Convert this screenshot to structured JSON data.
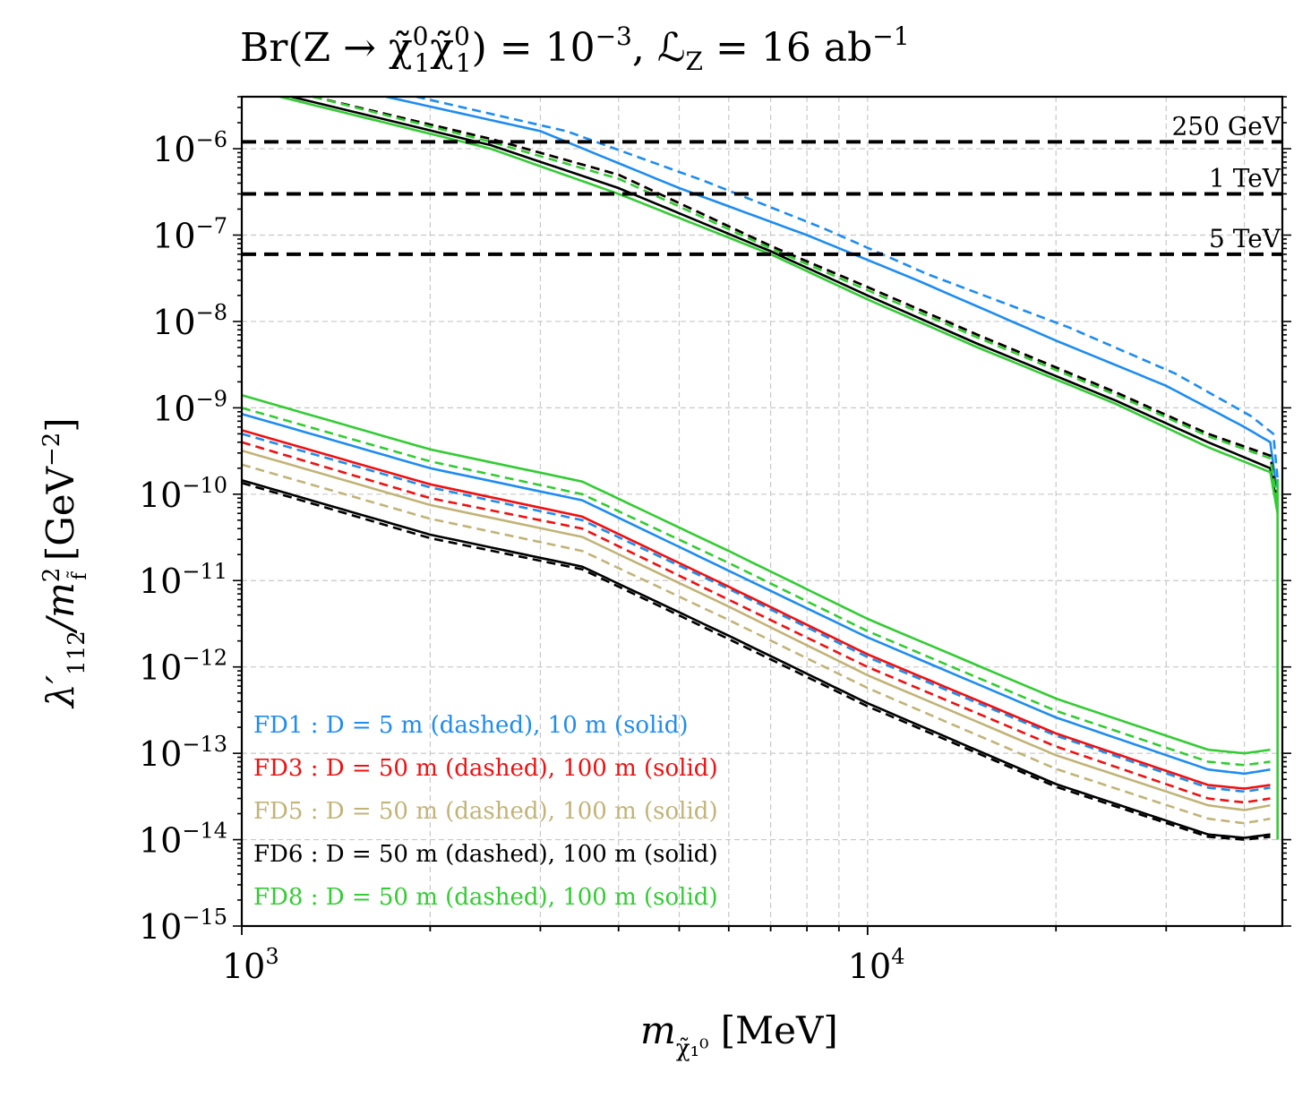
{
  "chart_data": {
    "type": "line",
    "title": "Br(Z → χ̃₁⁰χ̃₁⁰) = 10⁻³, ℒ_Z = 16 ab⁻¹",
    "title_parts": {
      "main": "Br(Z → χ̃",
      "sup1": "0",
      "sub1": "1",
      "mid": "χ̃",
      "sup2": "0",
      "sub2": "1",
      "eq": ") = 10",
      "exp": "−3",
      "lumi": ", ℒ",
      "lumi_sub": "Z",
      "lumi_val": " = 16 ab",
      "lumi_exp": "−1"
    },
    "xlabel": {
      "main": "m",
      "sub": "χ̃₁⁰",
      "unit": " [MeV]"
    },
    "ylabel": {
      "main": "λ′",
      "sub": "112",
      "slash": "/m",
      "sup": "2",
      "sub2": "f̃",
      "unit": " [GeV",
      "unit_exp": "−2",
      "unit_end": "]"
    },
    "x_scale": "log",
    "y_scale": "log",
    "xlim": [
      1000,
      46000
    ],
    "ylim": [
      1e-15,
      4e-06
    ],
    "x_major_ticks": [
      {
        "value": 1000,
        "base": "10",
        "exp": "3"
      },
      {
        "value": 10000,
        "base": "10",
        "exp": "4"
      }
    ],
    "y_major_ticks": [
      {
        "value": 1e-15,
        "base": "10",
        "exp": "−15"
      },
      {
        "value": 1e-14,
        "base": "10",
        "exp": "−14"
      },
      {
        "value": 1e-13,
        "base": "10",
        "exp": "−13"
      },
      {
        "value": 1e-12,
        "base": "10",
        "exp": "−12"
      },
      {
        "value": 1e-11,
        "base": "10",
        "exp": "−11"
      },
      {
        "value": 1e-10,
        "base": "10",
        "exp": "−10"
      },
      {
        "value": 1e-09,
        "base": "10",
        "exp": "−9"
      },
      {
        "value": 1e-08,
        "base": "10",
        "exp": "−8"
      },
      {
        "value": 1e-07,
        "base": "10",
        "exp": "−7"
      },
      {
        "value": 1e-06,
        "base": "10",
        "exp": "−6"
      }
    ],
    "grid": true,
    "reference_lines": [
      {
        "label": "250 GeV",
        "y": 1.2e-06,
        "color": "#000000"
      },
      {
        "label": "1 TeV",
        "y": 3e-07,
        "color": "#000000"
      },
      {
        "label": "5 TeV",
        "y": 6e-08,
        "color": "#000000"
      }
    ],
    "legend_placement": "bottom-left",
    "legend": [
      {
        "text": "FD1 : D =  5 m (dashed),  10 m (solid)",
        "color": "#1e8cf0"
      },
      {
        "text": "FD3 : D = 50 m (dashed), 100 m (solid)",
        "color": "#ee1111"
      },
      {
        "text": "FD5 : D = 50 m (dashed), 100 m (solid)",
        "color": "#c2b377"
      },
      {
        "text": "FD6 : D = 50 m (dashed), 100 m (solid)",
        "color": "#000000"
      },
      {
        "text": "FD8 : D = 50 m (dashed), 100 m (solid)",
        "color": "#33cc33"
      }
    ],
    "series": [
      {
        "name": "FD1 lower 10 m",
        "color": "#1e8cf0",
        "style": "solid",
        "x": [
          1000,
          2000,
          3500,
          6000,
          10000,
          20000,
          35000,
          40000,
          44000
        ],
        "y": [
          8.5e-10,
          2e-10,
          8.5e-11,
          1.3e-11,
          2.2e-12,
          2.6e-13,
          6.5e-14,
          5.8e-14,
          6.5e-14
        ]
      },
      {
        "name": "FD1 lower 5 m",
        "color": "#1e8cf0",
        "style": "dashed",
        "x": [
          1000,
          2000,
          3500,
          6000,
          10000,
          20000,
          35000,
          40000,
          44000
        ],
        "y": [
          5e-10,
          1.2e-10,
          5e-11,
          8e-12,
          1.3e-12,
          1.6e-13,
          4e-14,
          3.6e-14,
          4e-14
        ]
      },
      {
        "name": "FD3 lower 100 m",
        "color": "#ee1111",
        "style": "solid",
        "x": [
          1000,
          2000,
          3500,
          6000,
          10000,
          20000,
          35000,
          40000,
          44000
        ],
        "y": [
          5.5e-10,
          1.3e-10,
          5.5e-11,
          8.5e-12,
          1.4e-12,
          1.7e-13,
          4.3e-14,
          3.9e-14,
          4.3e-14
        ]
      },
      {
        "name": "FD3 lower 50 m",
        "color": "#ee1111",
        "style": "dashed",
        "x": [
          1000,
          2000,
          3500,
          6000,
          10000,
          20000,
          35000,
          40000,
          44000
        ],
        "y": [
          4e-10,
          9e-11,
          4e-11,
          6e-12,
          1e-12,
          1.2e-13,
          3e-14,
          2.7e-14,
          3e-14
        ]
      },
      {
        "name": "FD5 lower 100 m",
        "color": "#c2b377",
        "style": "solid",
        "x": [
          1000,
          2000,
          3500,
          6000,
          10000,
          20000,
          35000,
          40000,
          44000
        ],
        "y": [
          3.2e-10,
          7.5e-11,
          3.2e-11,
          5e-12,
          8e-13,
          9.5e-14,
          2.5e-14,
          2.2e-14,
          2.5e-14
        ]
      },
      {
        "name": "FD5 lower 50 m",
        "color": "#c2b377",
        "style": "dashed",
        "x": [
          1000,
          2000,
          3500,
          6000,
          10000,
          20000,
          35000,
          40000,
          44000
        ],
        "y": [
          2.2e-10,
          5.2e-11,
          2.2e-11,
          3.5e-12,
          5.7e-13,
          6.6e-14,
          1.75e-14,
          1.55e-14,
          1.75e-14
        ]
      },
      {
        "name": "FD6 lower 100 m",
        "color": "#000000",
        "style": "solid",
        "x": [
          1000,
          2000,
          3500,
          6000,
          10000,
          20000,
          35000,
          40000,
          44000
        ],
        "y": [
          1.45e-10,
          3.4e-11,
          1.45e-11,
          2.3e-12,
          3.8e-13,
          4.4e-14,
          1.15e-14,
          1.05e-14,
          1.15e-14
        ]
      },
      {
        "name": "FD6 lower 50 m",
        "color": "#000000",
        "style": "dashed",
        "x": [
          1000,
          2000,
          3500,
          6000,
          10000,
          20000,
          35000,
          40000,
          44000
        ],
        "y": [
          1.35e-10,
          3.1e-11,
          1.35e-11,
          2.1e-12,
          3.5e-13,
          4.1e-14,
          1.08e-14,
          1e-14,
          1.08e-14
        ]
      },
      {
        "name": "FD8 lower 100 m",
        "color": "#33cc33",
        "style": "solid",
        "x": [
          1000,
          2000,
          3500,
          6000,
          10000,
          20000,
          35000,
          40000,
          44000
        ],
        "y": [
          1.4e-09,
          3.3e-10,
          1.4e-10,
          2.2e-11,
          3.6e-12,
          4.3e-13,
          1.1e-13,
          1e-13,
          1.1e-13
        ]
      },
      {
        "name": "FD8 lower 50 m",
        "color": "#33cc33",
        "style": "dashed",
        "x": [
          1000,
          2000,
          3500,
          6000,
          10000,
          20000,
          35000,
          40000,
          44000
        ],
        "y": [
          1e-09,
          2.4e-10,
          1e-10,
          1.6e-11,
          2.6e-12,
          3.1e-13,
          8e-14,
          7.3e-14,
          8e-14
        ]
      },
      {
        "name": "FD1 upper 10 m",
        "color": "#1e8cf0",
        "style": "solid",
        "x": [
          1700,
          3000,
          5000,
          8000,
          12000,
          20000,
          30000,
          40000,
          44000,
          45000
        ],
        "y": [
          4e-06,
          1.6e-06,
          3.5e-07,
          1e-07,
          3e-08,
          6e-09,
          1.8e-09,
          6e-10,
          4e-10,
          1.2e-10
        ]
      },
      {
        "name": "FD1 upper 5 m",
        "color": "#1e8cf0",
        "style": "dashed",
        "x": [
          1900,
          3300,
          5500,
          8500,
          12500,
          21000,
          31000,
          41000,
          44500,
          45200
        ],
        "y": [
          4e-06,
          1.6e-06,
          4.2e-07,
          1.2e-07,
          3.5e-08,
          8.5e-09,
          2.5e-09,
          8e-10,
          5e-10,
          1.5e-10
        ]
      },
      {
        "name": "FD3 upper",
        "color": "#ee1111",
        "style": "dashed",
        "x": [
          1300,
          2500,
          4000,
          7000,
          10000,
          15000,
          25000,
          35000,
          44000,
          45200
        ],
        "y": [
          4e-06,
          1.3e-06,
          5e-07,
          7.5e-08,
          2.5e-08,
          7e-09,
          1.5e-09,
          5e-10,
          2.8e-10,
          8e-11
        ]
      },
      {
        "name": "FD6 upper 100 m",
        "color": "#000000",
        "style": "solid",
        "x": [
          1200,
          2500,
          4000,
          7000,
          10000,
          15000,
          25000,
          35000,
          44000,
          45200
        ],
        "y": [
          4e-06,
          1.1e-06,
          3.5e-07,
          6.5e-08,
          2e-08,
          5.5e-09,
          1.2e-09,
          4e-10,
          2e-10,
          7e-11
        ]
      },
      {
        "name": "FD6 upper 50 m",
        "color": "#000000",
        "style": "dashed",
        "x": [
          1300,
          2500,
          4000,
          7000,
          10000,
          15000,
          25000,
          35000,
          44000,
          45200
        ],
        "y": [
          4e-06,
          1.3e-06,
          5e-07,
          7.5e-08,
          2.5e-08,
          7e-09,
          1.5e-09,
          5e-10,
          2.8e-10,
          8e-11
        ]
      },
      {
        "name": "FD8 upper 100 m",
        "color": "#33cc33",
        "style": "solid",
        "x": [
          1150,
          2500,
          4000,
          7000,
          10000,
          15000,
          25000,
          35000,
          44000,
          45200
        ],
        "y": [
          4e-06,
          1e-06,
          3e-07,
          6e-08,
          1.8e-08,
          5e-09,
          1.1e-09,
          3.5e-10,
          1.8e-10,
          6e-11
        ]
      },
      {
        "name": "FD8 upper 50 m",
        "color": "#33cc33",
        "style": "dashed",
        "x": [
          1300,
          2500,
          4000,
          7000,
          10000,
          15000,
          25000,
          35000,
          44000,
          45200
        ],
        "y": [
          4e-06,
          1.2e-06,
          4.5e-07,
          7e-08,
          2.3e-08,
          6.5e-09,
          1.4e-09,
          4.7e-10,
          2.6e-10,
          7.5e-11
        ]
      }
    ],
    "vertical_edge": {
      "x": 45200,
      "y_from": 1e-14,
      "y_to": 1.5e-10
    }
  }
}
